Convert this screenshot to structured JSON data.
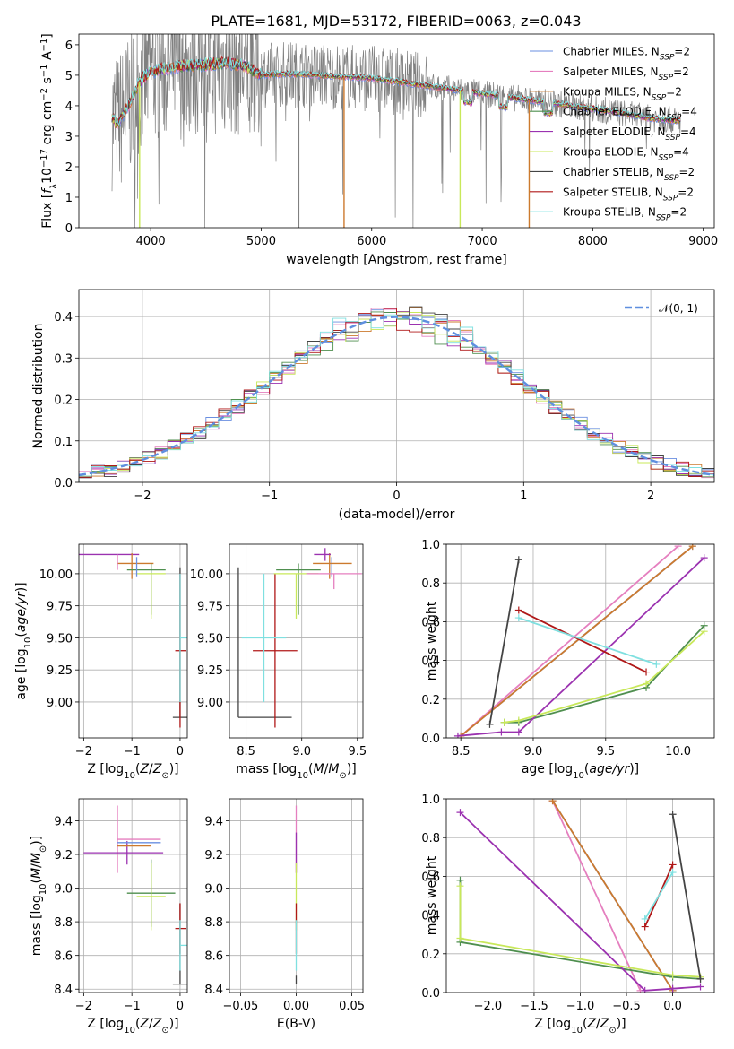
{
  "figure": {
    "title": "PLATE=1681, MJD=53172, FIBERID=0063, z=0.043"
  },
  "colors": {
    "Chabrier MILES": "#6a8fe0",
    "Salpeter MILES": "#e57fbf",
    "Kroupa MILES": "#cc7a2e",
    "Chabrier ELODIE": "#4f8f4f",
    "Salpeter ELODIE": "#9b32b0",
    "Kroupa ELODIE": "#c8e85a",
    "Chabrier STELIB": "#444444",
    "Salpeter STELIB": "#b01818",
    "Kroupa STELIB": "#7fe0e0",
    "data": "#808080",
    "normal": "#5f8fdf"
  },
  "chart_data": [
    {
      "id": "spectrum",
      "type": "line",
      "xlabel": "wavelength [Angstrom, rest frame]",
      "ylabel": "Flux [f_λ 10^-17 erg cm^-2 s^-1 A^-1]",
      "xlim": [
        3350,
        9100
      ],
      "ylim": [
        0,
        6.35
      ],
      "xticks": [
        4000,
        5000,
        6000,
        7000,
        8000,
        9000
      ],
      "yticks": [
        0,
        1,
        2,
        3,
        4,
        5,
        6
      ],
      "legend_position": "upper right",
      "legend": [
        {
          "name": "Chabrier MILES",
          "label": "Chabrier MILES, N",
          "sub": "SSP",
          "tail": "=2"
        },
        {
          "name": "Salpeter MILES",
          "label": "Salpeter MILES, N",
          "sub": "SSP",
          "tail": "=2"
        },
        {
          "name": "Kroupa MILES",
          "label": "Kroupa MILES, N",
          "sub": "SSP",
          "tail": "=2"
        },
        {
          "name": "Chabrier ELODIE",
          "label": "Chabrier ELODIE, N",
          "sub": "SSP",
          "tail": "=4"
        },
        {
          "name": "Salpeter ELODIE",
          "label": "Salpeter ELODIE, N",
          "sub": "SSP",
          "tail": "=4"
        },
        {
          "name": "Kroupa ELODIE",
          "label": "Kroupa ELODIE, N",
          "sub": "SSP",
          "tail": "=4"
        },
        {
          "name": "Chabrier STELIB",
          "label": "Chabrier STELIB, N",
          "sub": "SSP",
          "tail": "=2"
        },
        {
          "name": "Salpeter STELIB",
          "label": "Salpeter STELIB, N",
          "sub": "SSP",
          "tail": "=2"
        },
        {
          "name": "Kroupa STELIB",
          "label": "Kroupa STELIB, N",
          "sub": "SSP",
          "tail": "=2"
        }
      ],
      "continuum_knots": {
        "x": [
          3650,
          3700,
          3800,
          3900,
          4000,
          4100,
          4300,
          4500,
          4700,
          4850,
          5000,
          5200,
          5500,
          5800,
          6000,
          6300,
          6600,
          6800,
          7000,
          7200,
          7500,
          7800,
          8000,
          8200,
          8500,
          8800
        ],
        "y": [
          3.6,
          3.4,
          4.0,
          4.8,
          5.1,
          5.2,
          5.3,
          5.35,
          5.4,
          5.3,
          5.0,
          5.05,
          5.0,
          4.95,
          4.9,
          4.75,
          4.6,
          4.5,
          4.4,
          4.3,
          4.15,
          4.0,
          3.9,
          3.8,
          3.6,
          3.5
        ]
      },
      "spikes": [
        {
          "x": 5750,
          "y0": 0,
          "color": "Kroupa MILES"
        },
        {
          "x": 6800,
          "y0": 0,
          "color": "Kroupa ELODIE"
        },
        {
          "x": 7425,
          "y0": 0,
          "color": "Kroupa MILES"
        },
        {
          "x": 5340,
          "y0": 0,
          "color": "data"
        },
        {
          "x": 3900,
          "y0": 0,
          "color": "Kroupa ELODIE"
        }
      ],
      "absorption_bands": [
        7600,
        6870,
        7190
      ]
    },
    {
      "id": "residuals",
      "type": "histogram",
      "xlabel": "(data-model)/error",
      "ylabel": "Normed distribution",
      "xlim": [
        -2.5,
        2.5
      ],
      "ylim": [
        0,
        0.465
      ],
      "xticks": [
        -2,
        -1,
        0,
        1,
        2
      ],
      "yticks": [
        0.0,
        0.1,
        0.2,
        0.3,
        0.4
      ],
      "grid": true,
      "bin_width": 0.1,
      "legend": "𝒩(0, 1)",
      "legend_position": "upper right",
      "profile": [
        0.4,
        0.39,
        0.43,
        0.36,
        0.41,
        0.33,
        0.38,
        0.31,
        0.37,
        0.27,
        0.32,
        0.25,
        0.28,
        0.21,
        0.23,
        0.18,
        0.2,
        0.15,
        0.16,
        0.12,
        0.13,
        0.1,
        0.1,
        0.08,
        0.07,
        0.05
      ],
      "jitter": 0.018
    },
    {
      "id": "age-vs-Z",
      "type": "errorbar",
      "xlabel": "Z [log10(Z/Z⊙)]",
      "ylabel": "age [log10(age/yr)]",
      "xlim": [
        -2.1,
        0.15
      ],
      "ylim": [
        8.72,
        10.23
      ],
      "xticks": [
        -2,
        -1,
        0
      ],
      "yticks": [
        9.0,
        9.25,
        9.5,
        9.75,
        10.0
      ],
      "grid": true,
      "points": [
        {
          "name": "Salpeter ELODIE",
          "x": -1.2,
          "y": 10.15,
          "xerr": [
            0.9,
            0.35
          ],
          "yerr": [
            0,
            0
          ]
        },
        {
          "name": "Kroupa MILES",
          "x": -1.0,
          "y": 10.08,
          "xerr": [
            0.3,
            0.45
          ],
          "yerr": [
            0.12,
            0.08
          ]
        },
        {
          "name": "Salpeter MILES",
          "x": -1.3,
          "y": 10.15,
          "xerr": [
            0,
            0
          ],
          "yerr": [
            0.12,
            0.0
          ]
        },
        {
          "name": "Chabrier ELODIE",
          "x": -0.6,
          "y": 10.03,
          "xerr": [
            0.5,
            0.3
          ],
          "yerr": [
            0.35,
            0.05
          ]
        },
        {
          "name": "Kroupa ELODIE",
          "x": -0.6,
          "y": 10.0,
          "xerr": [
            0.3,
            0.3
          ],
          "yerr": [
            0.35,
            0.0
          ]
        },
        {
          "name": "Chabrier MILES",
          "x": -0.9,
          "y": 10.08,
          "xerr": [
            0,
            0
          ],
          "yerr": [
            0.1,
            0.05
          ]
        },
        {
          "name": "Chabrier STELIB",
          "x": 0.0,
          "y": 8.88,
          "xerr": [
            0.15,
            0.15
          ],
          "yerr": [
            0,
            1.17
          ]
        },
        {
          "name": "Salpeter STELIB",
          "x": 0.0,
          "y": 9.4,
          "xerr": [
            0.1,
            0.12
          ],
          "yerr": [
            0.6,
            0.6
          ]
        },
        {
          "name": "Kroupa STELIB",
          "x": 0.0,
          "y": 9.5,
          "xerr": [
            0.0,
            0.3
          ],
          "yerr": [
            0.5,
            0.5
          ]
        }
      ]
    },
    {
      "id": "age-vs-mass",
      "type": "errorbar",
      "xlabel": "mass [log10(M/M⊙)]",
      "ylabel": "",
      "xlim": [
        8.35,
        9.55
      ],
      "ylim": [
        8.72,
        10.23
      ],
      "xticks": [
        8.5,
        9.0,
        9.5
      ],
      "yticks": [
        9.0,
        9.25,
        9.5,
        9.75,
        10.0
      ],
      "grid": true,
      "points": [
        {
          "name": "Chabrier STELIB",
          "x": 8.43,
          "y": 8.88,
          "xerr": [
            0,
            0.48
          ],
          "yerr": [
            0,
            1.17
          ]
        },
        {
          "name": "Salpeter STELIB",
          "x": 8.76,
          "y": 9.4,
          "xerr": [
            0.2,
            0.2
          ],
          "yerr": [
            0.6,
            0.6
          ]
        },
        {
          "name": "Kroupa STELIB",
          "x": 8.66,
          "y": 9.5,
          "xerr": [
            0.2,
            0.2
          ],
          "yerr": [
            0.5,
            0.5
          ]
        },
        {
          "name": "Chabrier ELODIE",
          "x": 8.97,
          "y": 10.03,
          "xerr": [
            0.2,
            0.2
          ],
          "yerr": [
            0.35,
            0.05
          ]
        },
        {
          "name": "Kroupa ELODIE",
          "x": 8.95,
          "y": 10.0,
          "xerr": [
            0.2,
            0.2
          ],
          "yerr": [
            0.35,
            0.0
          ]
        },
        {
          "name": "Chabrier MILES",
          "x": 9.27,
          "y": 10.08,
          "xerr": [
            0,
            0
          ],
          "yerr": [
            0.1,
            0.05
          ]
        },
        {
          "name": "Kroupa MILES",
          "x": 9.25,
          "y": 10.08,
          "xerr": [
            0.15,
            0.2
          ],
          "yerr": [
            0.12,
            0.08
          ]
        },
        {
          "name": "Salpeter MILES",
          "x": 9.29,
          "y": 10.0,
          "xerr": [
            0.25,
            0.25
          ],
          "yerr": [
            0.12,
            0.0
          ]
        },
        {
          "name": "Salpeter ELODIE",
          "x": 9.21,
          "y": 10.15,
          "xerr": [
            0.1,
            0.05
          ],
          "yerr": [
            0.05,
            0.05
          ]
        }
      ]
    },
    {
      "id": "weight-vs-age",
      "type": "line",
      "xlabel": "age [log10(age/yr)]",
      "ylabel": "mass weight",
      "xlim": [
        8.4,
        10.25
      ],
      "ylim": [
        0,
        1
      ],
      "xticks": [
        8.5,
        9.0,
        9.5,
        10.0
      ],
      "yticks": [
        0.0,
        0.2,
        0.4,
        0.6,
        0.8,
        1.0
      ],
      "grid": true,
      "series": [
        {
          "name": "Chabrier MILES",
          "x": [
            8.5,
            10.1
          ],
          "y": [
            0.01,
            0.99
          ]
        },
        {
          "name": "Salpeter MILES",
          "x": [
            8.5,
            10.0
          ],
          "y": [
            0.01,
            0.99
          ]
        },
        {
          "name": "Kroupa MILES",
          "x": [
            8.5,
            10.1
          ],
          "y": [
            0.01,
            0.99
          ]
        },
        {
          "name": "Chabrier ELODIE",
          "x": [
            8.8,
            8.9,
            9.78,
            10.18
          ],
          "y": [
            0.08,
            0.08,
            0.26,
            0.58
          ]
        },
        {
          "name": "Salpeter ELODIE",
          "x": [
            8.48,
            8.78,
            8.9,
            10.18
          ],
          "y": [
            0.01,
            0.03,
            0.03,
            0.93
          ]
        },
        {
          "name": "Kroupa ELODIE",
          "x": [
            8.8,
            8.9,
            9.78,
            10.18
          ],
          "y": [
            0.08,
            0.09,
            0.28,
            0.55
          ]
        },
        {
          "name": "Chabrier STELIB",
          "x": [
            8.7,
            8.9
          ],
          "y": [
            0.07,
            0.92
          ]
        },
        {
          "name": "Salpeter STELIB",
          "x": [
            8.9,
            9.78
          ],
          "y": [
            0.66,
            0.34
          ]
        },
        {
          "name": "Kroupa STELIB",
          "x": [
            8.9,
            9.85
          ],
          "y": [
            0.62,
            0.38
          ]
        }
      ]
    },
    {
      "id": "mass-vs-Z",
      "type": "errorbar",
      "xlabel": "Z [log10(Z/Z⊙)]",
      "ylabel": "mass [log10(M/M⊙)]",
      "xlim": [
        -2.1,
        0.15
      ],
      "ylim": [
        8.38,
        9.53
      ],
      "xticks": [
        -2,
        -1,
        0
      ],
      "yticks": [
        8.4,
        8.6,
        8.8,
        9.0,
        9.2,
        9.4
      ],
      "grid": true,
      "points": [
        {
          "name": "Salpeter MILES",
          "x": -1.3,
          "y": 9.29,
          "xerr": [
            0,
            0.9
          ],
          "yerr": [
            0.2,
            0.2
          ]
        },
        {
          "name": "Salpeter ELODIE",
          "x": -1.1,
          "y": 9.21,
          "xerr": [
            0.9,
            0.75
          ],
          "yerr": [
            0.07,
            0.07
          ]
        },
        {
          "name": "Chabrier MILES",
          "x": -1.3,
          "y": 9.27,
          "xerr": [
            0.0,
            0.9
          ],
          "yerr": [
            0,
            0
          ]
        },
        {
          "name": "Kroupa MILES",
          "x": -1.3,
          "y": 9.25,
          "xerr": [
            0.0,
            0.7
          ],
          "yerr": [
            0,
            0
          ]
        },
        {
          "name": "Chabrier ELODIE",
          "x": -0.6,
          "y": 8.97,
          "xerr": [
            0.5,
            0.5
          ],
          "yerr": [
            0.2,
            0.2
          ]
        },
        {
          "name": "Kroupa ELODIE",
          "x": -0.6,
          "y": 8.95,
          "xerr": [
            0.3,
            0.3
          ],
          "yerr": [
            0.2,
            0.2
          ]
        },
        {
          "name": "Chabrier STELIB",
          "x": 0.0,
          "y": 8.43,
          "xerr": [
            0.15,
            0.15
          ],
          "yerr": [
            0,
            0.48
          ]
        },
        {
          "name": "Salpeter STELIB",
          "x": 0.0,
          "y": 8.76,
          "xerr": [
            0.1,
            0.12
          ],
          "yerr": [
            0.15,
            0.15
          ]
        },
        {
          "name": "Kroupa STELIB",
          "x": 0.0,
          "y": 8.66,
          "xerr": [
            0.0,
            0.25
          ],
          "yerr": [
            0.15,
            0.15
          ]
        }
      ]
    },
    {
      "id": "mass-vs-ebv",
      "type": "errorbar",
      "xlabel": "E(B-V)",
      "ylabel": "",
      "xlim": [
        -0.06,
        0.06
      ],
      "ylim": [
        8.38,
        9.53
      ],
      "xticks": [
        -0.05,
        0.0,
        0.05
      ],
      "xticklabels": [
        "−0.05",
        "0.00",
        "0.05"
      ],
      "yticks": [
        8.4,
        8.6,
        8.8,
        9.0,
        9.2,
        9.4
      ],
      "grid": true,
      "points": [
        {
          "name": "Salpeter MILES",
          "x": 0.0,
          "y": 9.29,
          "xerr": [
            0,
            0
          ],
          "yerr": [
            0.2,
            0.2
          ]
        },
        {
          "name": "Salpeter ELODIE",
          "x": 0.0,
          "y": 9.21,
          "xerr": [
            0,
            0
          ],
          "yerr": [
            0.12,
            0.12
          ]
        },
        {
          "name": "Kroupa ELODIE",
          "x": 0.0,
          "y": 8.95,
          "xerr": [
            0,
            0
          ],
          "yerr": [
            0.2,
            0.2
          ]
        },
        {
          "name": "Salpeter STELIB",
          "x": 0.0,
          "y": 8.76,
          "xerr": [
            0,
            0
          ],
          "yerr": [
            0.15,
            0.15
          ]
        },
        {
          "name": "Kroupa STELIB",
          "x": 0.0,
          "y": 8.66,
          "xerr": [
            0,
            0
          ],
          "yerr": [
            0.15,
            0.15
          ]
        },
        {
          "name": "Chabrier STELIB",
          "x": 0.0,
          "y": 8.43,
          "xerr": [
            0,
            0
          ],
          "yerr": [
            0,
            0.05
          ]
        }
      ]
    },
    {
      "id": "weight-vs-Z",
      "type": "line",
      "xlabel": "Z [log10(Z/Z⊙)]",
      "ylabel": "mass weight",
      "xlim": [
        -2.45,
        0.45
      ],
      "ylim": [
        0,
        1
      ],
      "xticks": [
        -2.0,
        -1.5,
        -1.0,
        -0.5,
        0.0
      ],
      "xticklabels": [
        "−2.0",
        "−1.5",
        "−1.0",
        "−0.5",
        "0.0"
      ],
      "yticks": [
        0.0,
        0.2,
        0.4,
        0.6,
        0.8,
        1.0
      ],
      "grid": true,
      "series": [
        {
          "name": "Chabrier MILES",
          "x": [
            -1.3,
            0.0
          ],
          "y": [
            0.99,
            0.01
          ]
        },
        {
          "name": "Salpeter MILES",
          "x": [
            -1.3,
            -0.35
          ],
          "y": [
            0.99,
            0.01
          ]
        },
        {
          "name": "Kroupa MILES",
          "x": [
            -1.3,
            0.0
          ],
          "y": [
            0.99,
            0.01
          ]
        },
        {
          "name": "Chabrier ELODIE",
          "x": [
            -2.3,
            -2.3,
            0.0,
            0.3
          ],
          "y": [
            0.58,
            0.26,
            0.08,
            0.07
          ]
        },
        {
          "name": "Salpeter ELODIE",
          "x": [
            -2.3,
            -0.3,
            0.0,
            0.3
          ],
          "y": [
            0.93,
            0.01,
            0.02,
            0.03
          ]
        },
        {
          "name": "Kroupa ELODIE",
          "x": [
            -2.3,
            -2.3,
            0.0,
            0.3
          ],
          "y": [
            0.55,
            0.28,
            0.09,
            0.08
          ]
        },
        {
          "name": "Chabrier STELIB",
          "x": [
            0.0,
            0.3
          ],
          "y": [
            0.92,
            0.07
          ]
        },
        {
          "name": "Salpeter STELIB",
          "x": [
            -0.3,
            0.0
          ],
          "y": [
            0.34,
            0.66
          ]
        },
        {
          "name": "Kroupa STELIB",
          "x": [
            -0.3,
            0.0
          ],
          "y": [
            0.38,
            0.62
          ]
        }
      ]
    }
  ]
}
